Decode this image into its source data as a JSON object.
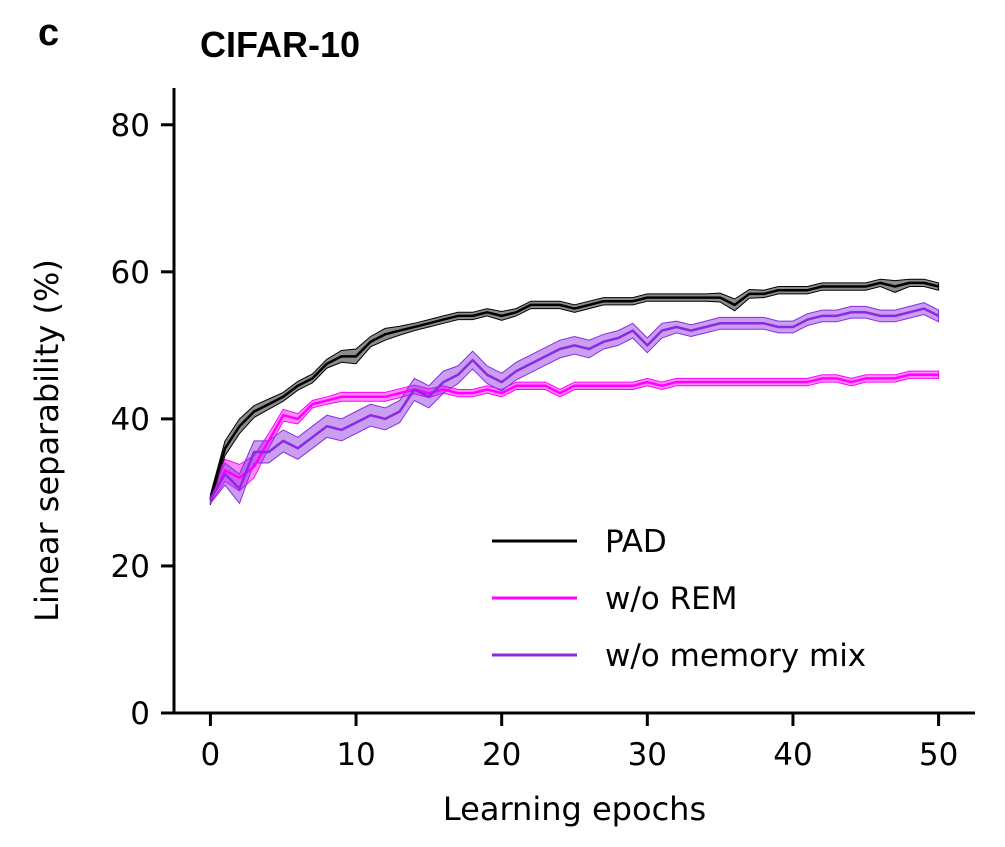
{
  "panel_label": "c",
  "chart_data": {
    "type": "line",
    "title": "CIFAR-10",
    "xlabel": "Learning epochs",
    "ylabel": "Linear separability (%)",
    "xlim": [
      -2.5,
      52.5
    ],
    "ylim": [
      0,
      85
    ],
    "xticks": [
      0,
      10,
      20,
      30,
      40,
      50
    ],
    "yticks": [
      0,
      20,
      40,
      60,
      80
    ],
    "grid": false,
    "legend_position": "bottom-right",
    "x": [
      0,
      1,
      2,
      3,
      4,
      5,
      6,
      7,
      8,
      9,
      10,
      11,
      12,
      13,
      14,
      15,
      16,
      17,
      18,
      19,
      20,
      21,
      22,
      23,
      24,
      25,
      26,
      27,
      28,
      29,
      30,
      31,
      32,
      33,
      34,
      35,
      36,
      37,
      38,
      39,
      40,
      41,
      42,
      43,
      44,
      45,
      46,
      47,
      48,
      49,
      50
    ],
    "series": [
      {
        "name": "PAD",
        "color": "#000000",
        "values": [
          29,
          36,
          39,
          41,
          42,
          43,
          44.5,
          45.5,
          47.5,
          48.5,
          48.5,
          50.5,
          51.5,
          52,
          52.5,
          53,
          53.5,
          54,
          54,
          54.5,
          54,
          54.5,
          55.5,
          55.5,
          55.5,
          55,
          55.5,
          56,
          56,
          56,
          56.5,
          56.5,
          56.5,
          56.5,
          56.5,
          56.5,
          55.5,
          57,
          57,
          57.5,
          57.5,
          57.5,
          58,
          58,
          58,
          58,
          58.5,
          58,
          58.5,
          58.5,
          58
        ],
        "band": [
          0.7,
          1.0,
          1.0,
          0.8,
          0.7,
          0.6,
          0.6,
          0.6,
          0.6,
          0.8,
          1.0,
          0.7,
          0.8,
          0.6,
          0.5,
          0.5,
          0.5,
          0.5,
          0.5,
          0.5,
          0.6,
          0.5,
          0.5,
          0.5,
          0.5,
          0.5,
          0.5,
          0.5,
          0.5,
          0.5,
          0.5,
          0.5,
          0.5,
          0.5,
          0.5,
          0.6,
          0.8,
          0.6,
          0.5,
          0.5,
          0.5,
          0.5,
          0.5,
          0.5,
          0.5,
          0.5,
          0.5,
          0.8,
          0.5,
          0.5,
          0.5
        ]
      },
      {
        "name": "w/o REM",
        "color": "#ff00ff",
        "values": [
          29,
          33,
          32,
          33.5,
          37,
          40.5,
          40,
          42,
          42.5,
          43,
          43,
          43,
          43,
          43.5,
          44,
          43.5,
          44,
          43.5,
          43.5,
          44,
          43.5,
          44.5,
          44.5,
          44.5,
          43.5,
          44.5,
          44.5,
          44.5,
          44.5,
          44.5,
          45,
          44.5,
          45,
          45,
          45,
          45,
          45,
          45,
          45,
          45,
          45,
          45,
          45.5,
          45.5,
          45,
          45.5,
          45.5,
          45.5,
          46,
          46,
          46
        ],
        "band": [
          0.5,
          1.5,
          1.8,
          1.5,
          1.0,
          0.8,
          0.7,
          0.5,
          0.5,
          0.6,
          0.6,
          0.6,
          0.6,
          0.6,
          0.6,
          0.6,
          0.5,
          0.5,
          0.5,
          0.5,
          0.5,
          0.5,
          0.5,
          0.5,
          0.5,
          0.5,
          0.5,
          0.5,
          0.5,
          0.5,
          0.5,
          0.5,
          0.5,
          0.5,
          0.5,
          0.5,
          0.5,
          0.5,
          0.5,
          0.5,
          0.5,
          0.5,
          0.5,
          0.5,
          0.5,
          0.5,
          0.5,
          0.5,
          0.5,
          0.5,
          0.5
        ]
      },
      {
        "name": "w/o memory mix",
        "color": "#8a2be2",
        "values": [
          29,
          32.5,
          30.5,
          35.5,
          35.5,
          37,
          36,
          37.5,
          39,
          38.5,
          39.5,
          40.5,
          40,
          41,
          44,
          43,
          45,
          46,
          48,
          46,
          45,
          46.5,
          47.5,
          48.5,
          49.5,
          50,
          49.5,
          50.5,
          51,
          52,
          50,
          52,
          52.5,
          52,
          52.5,
          53,
          53,
          53,
          53,
          52.5,
          52.5,
          53.5,
          54,
          54,
          54.5,
          54.5,
          54,
          54,
          54.5,
          55,
          54
        ],
        "band": [
          0.5,
          1.5,
          2.0,
          1.5,
          1.5,
          1.5,
          1.5,
          1.5,
          1.5,
          1.5,
          1.5,
          1.5,
          1.5,
          1.5,
          1.5,
          1.5,
          1.5,
          1.2,
          1.2,
          1.2,
          1.2,
          1.2,
          1.2,
          1.2,
          1.2,
          1.2,
          1.2,
          1.0,
          1.0,
          1.0,
          1.0,
          1.0,
          0.8,
          0.8,
          0.8,
          0.8,
          0.8,
          0.8,
          0.8,
          0.8,
          0.8,
          0.8,
          0.8,
          0.8,
          0.8,
          0.8,
          0.8,
          0.8,
          0.8,
          0.8,
          0.8
        ]
      }
    ]
  }
}
